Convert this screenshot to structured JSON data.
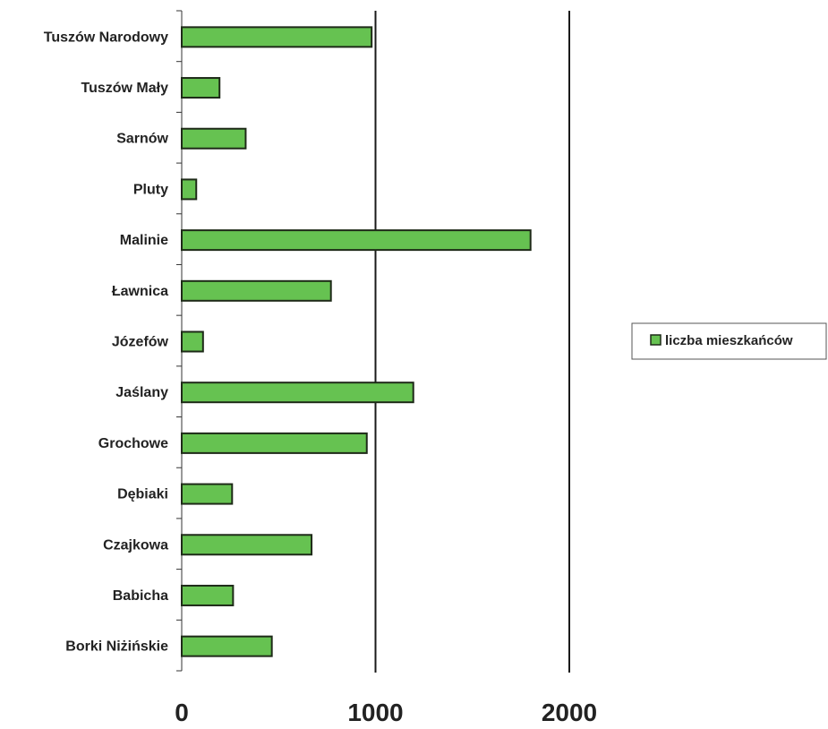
{
  "chart_data": {
    "type": "bar",
    "orientation": "horizontal",
    "categories": [
      "Tuszów Narodowy",
      "Tuszów Mały",
      "Sarnów",
      "Pluty",
      "Malinie",
      "Ławnica",
      "Józefów",
      "Jaślany",
      "Grochowe",
      "Dębiaki",
      "Czajkowa",
      "Babicha",
      "Borki Niżińskie"
    ],
    "series": [
      {
        "name": "liczba mieszkańców",
        "color": "#66c251",
        "values": [
          980,
          195,
          330,
          75,
          1800,
          770,
          110,
          1195,
          955,
          260,
          670,
          265,
          465
        ]
      }
    ],
    "x_ticks": [
      "0",
      "1000",
      "2000"
    ],
    "xlim": [
      0,
      2000
    ],
    "grid": "vertical major lines",
    "legend": {
      "position": "right",
      "label": "liczba mieszkańców"
    },
    "colors": {
      "bar_fill": "#66c251",
      "bar_stroke": "#1e2a18",
      "axis": "#333333"
    }
  }
}
